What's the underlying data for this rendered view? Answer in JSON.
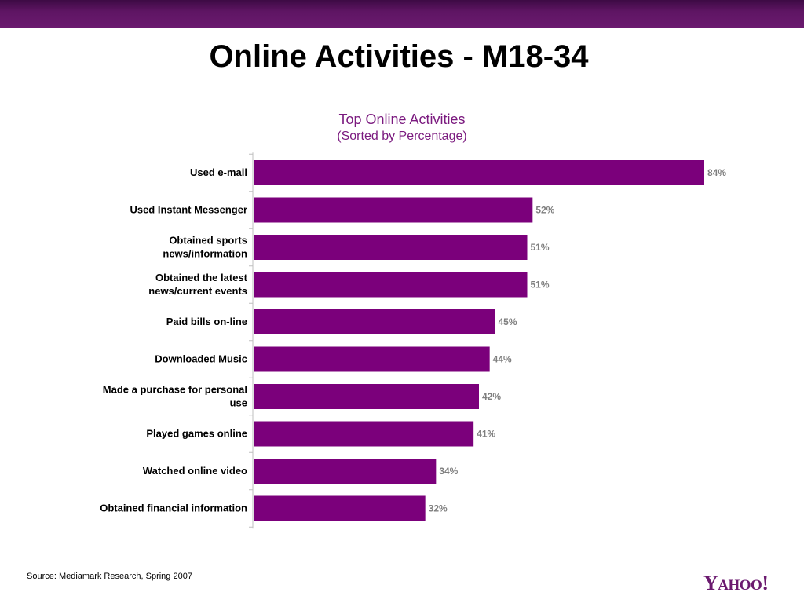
{
  "page": {
    "title": "Online Activities - M18-34",
    "source": "Source: Mediamark Research, Spring 2007",
    "logo_text": "YAHOO!",
    "colors": {
      "band": "#5e1563",
      "bar": "#7b007b",
      "title_accent": "#7b1a7f",
      "value_label": "#7f7f7f"
    }
  },
  "chart_data": {
    "type": "bar",
    "orientation": "horizontal",
    "title": "Top Online Activities",
    "subtitle": "(Sorted by Percentage)",
    "categories": [
      "Used e-mail",
      "Used Instant Messenger",
      "Obtained sports news/information",
      "Obtained the latest news/current events",
      "Paid bills on-line",
      "Downloaded Music",
      "Made a purchase for personal use",
      "Played games online",
      "Watched online video",
      "Obtained financial information"
    ],
    "category_lines": [
      [
        "Used e-mail"
      ],
      [
        "Used Instant Messenger"
      ],
      [
        "Obtained sports",
        "news/information"
      ],
      [
        "Obtained the latest",
        "news/current events"
      ],
      [
        "Paid bills on-line"
      ],
      [
        "Downloaded Music"
      ],
      [
        "Made a purchase for personal",
        "use"
      ],
      [
        "Played games online"
      ],
      [
        "Watched online video"
      ],
      [
        "Obtained financial information"
      ]
    ],
    "values": [
      84,
      52,
      51,
      51,
      45,
      44,
      42,
      41,
      34,
      32
    ],
    "value_labels": [
      "84%",
      "52%",
      "51%",
      "51%",
      "45%",
      "44%",
      "42%",
      "41%",
      "34%",
      "32%"
    ],
    "xlim": [
      0,
      100
    ],
    "grid": false,
    "legend": "none"
  }
}
